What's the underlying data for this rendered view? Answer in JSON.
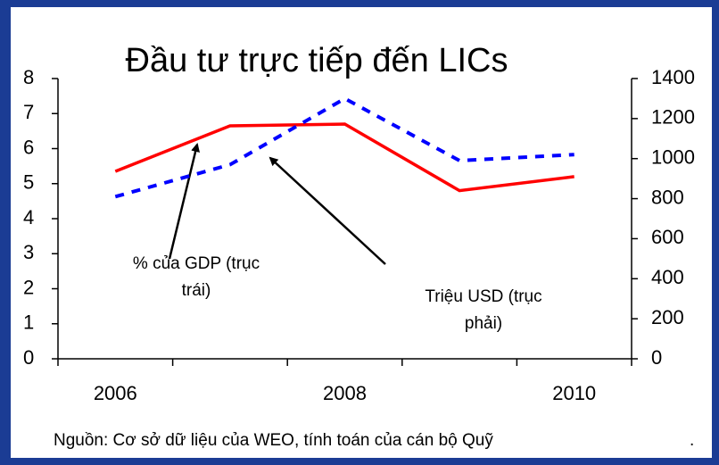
{
  "chart_data": {
    "type": "line",
    "title": "Đầu tư trực tiếp đến LICs",
    "categories": [
      "2006",
      null,
      "2008",
      null,
      "2010"
    ],
    "series": [
      {
        "name": "% của GDP (trục trái)",
        "color": "#ff0000",
        "values": [
          5.35,
          6.65,
          6.7,
          4.8,
          5.2
        ]
      },
      {
        "name": "Triệu USD (trục phải)",
        "color": "#0000ff",
        "axis": "y2",
        "dashed": true,
        "values": [
          810,
          970,
          1300,
          990,
          1020
        ]
      }
    ],
    "ylim": [
      0,
      8
    ],
    "yticks": [
      0,
      1,
      2,
      3,
      4,
      5,
      6,
      7,
      8
    ],
    "y2lim": [
      0,
      1400
    ],
    "y2ticks": [
      0,
      200,
      400,
      600,
      800,
      1000,
      1200,
      1400
    ],
    "annotations": [
      {
        "lines": [
          "%  của GDP (trục",
          "trái)"
        ]
      },
      {
        "lines": [
          "Triệu USD (trục",
          "phải)"
        ]
      }
    ],
    "source": "Nguồn: Cơ sở dữ liệu của WEO, tính toán của cán bộ Quỹ",
    "source_end": "."
  }
}
